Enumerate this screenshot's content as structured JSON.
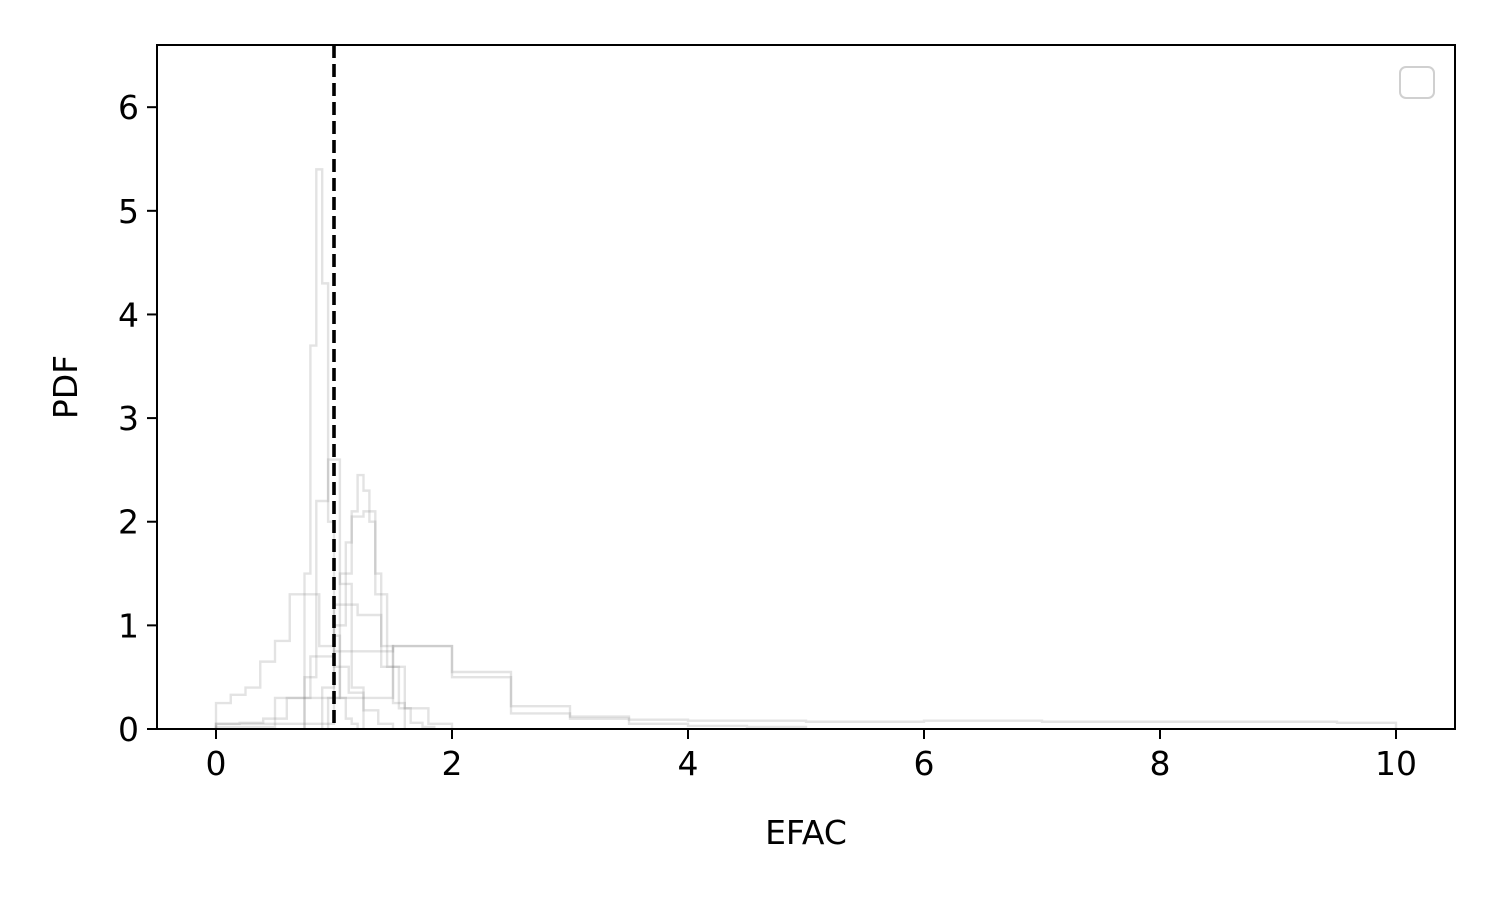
{
  "chart_data": {
    "type": "histogram",
    "title": "",
    "xlabel": "EFAC",
    "ylabel": "PDF",
    "xlim": [
      -0.5,
      10.5
    ],
    "ylim": [
      0,
      6.6
    ],
    "xticks": [
      0,
      2,
      4,
      6,
      8,
      10
    ],
    "yticks": [
      0,
      1,
      2,
      3,
      4,
      5,
      6
    ],
    "grid": false,
    "legend": {
      "placement": "upper-right",
      "entries": []
    },
    "reference_line": {
      "x": 1.0,
      "style": "dashed",
      "color": "#000000"
    },
    "series_style": {
      "color": "#808080",
      "opacity": 0.22,
      "histtype": "step"
    },
    "series": [
      {
        "edges": [
          0,
          0.125,
          0.25,
          0.375,
          0.5,
          0.625,
          0.75,
          0.875,
          1.0,
          1.125,
          1.25,
          1.375,
          1.5
        ],
        "values": [
          0.25,
          0.33,
          0.4,
          0.65,
          0.85,
          1.3,
          1.3,
          0.8,
          0.6,
          0.35,
          0.18,
          0.05
        ]
      },
      {
        "edges": [
          0.75,
          0.8,
          0.85,
          0.9,
          0.95,
          1.0,
          1.05,
          1.1,
          1.15,
          1.2
        ],
        "values": [
          1.5,
          3.7,
          5.4,
          4.3,
          2.0,
          0.9,
          0.3,
          0.1,
          0.05
        ]
      },
      {
        "edges": [
          0.75,
          0.85,
          0.95,
          1.05,
          1.15,
          1.25
        ],
        "values": [
          0.5,
          2.2,
          2.6,
          1.4,
          0.4
        ]
      },
      {
        "edges": [
          0,
          0.2,
          0.4,
          0.6,
          0.8,
          1.0,
          1.2,
          1.4,
          1.6,
          1.8,
          2.0
        ],
        "values": [
          0.05,
          0.06,
          0.1,
          0.3,
          0.7,
          1.2,
          1.1,
          0.6,
          0.2,
          0.05
        ]
      },
      {
        "edges": [
          0.9,
          1.0,
          1.1,
          1.15,
          1.2,
          1.25,
          1.3,
          1.35,
          1.4,
          1.5,
          1.6
        ],
        "values": [
          0.4,
          1.0,
          1.8,
          2.1,
          2.45,
          2.3,
          2.0,
          1.5,
          0.8,
          0.25
        ]
      },
      {
        "edges": [
          0.95,
          1.05,
          1.15,
          1.25,
          1.35,
          1.45,
          1.55,
          1.65,
          1.75,
          1.85
        ],
        "values": [
          0.3,
          1.5,
          2.05,
          2.1,
          1.3,
          0.6,
          0.2,
          0.06,
          0.02
        ]
      },
      {
        "edges": [
          0,
          0.5,
          1.0,
          1.5,
          2.0,
          2.5,
          3.0,
          3.5,
          4.0,
          4.5,
          5.0
        ],
        "values": [
          0.05,
          0.3,
          0.75,
          0.8,
          0.5,
          0.15,
          0.1,
          0.05,
          0.03,
          0.02
        ]
      },
      {
        "edges": [
          0,
          0.5,
          1.0,
          1.5,
          2.0,
          2.5,
          3.0,
          3.5,
          4.0,
          5.0,
          6.0,
          7.0,
          8.0,
          9.0,
          9.5,
          10.0
        ],
        "values": [
          0.02,
          0.05,
          0.3,
          0.8,
          0.55,
          0.22,
          0.12,
          0.09,
          0.08,
          0.07,
          0.08,
          0.07,
          0.07,
          0.07,
          0.06
        ]
      }
    ]
  }
}
